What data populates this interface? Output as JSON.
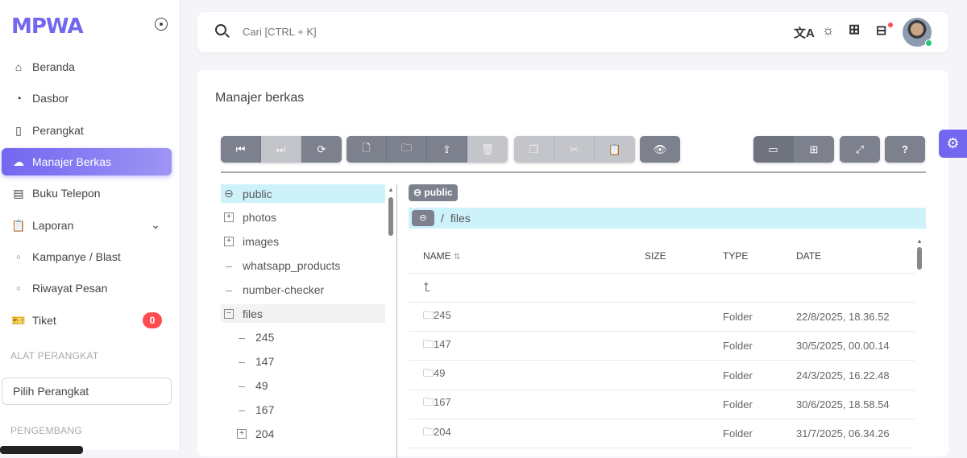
{
  "brand": {
    "logo": "MPWA"
  },
  "sidebar": {
    "items": [
      {
        "label": "Beranda",
        "icon": "home-icon",
        "glyph": "⌂"
      },
      {
        "label": "Dasbor",
        "icon": "gauge-icon",
        "glyph": "◔"
      },
      {
        "label": "Perangkat",
        "icon": "phone-icon",
        "glyph": "▯"
      },
      {
        "label": "Manajer Berkas",
        "icon": "cloud-upload-icon",
        "glyph": "☁"
      },
      {
        "label": "Buku Telepon",
        "icon": "book-icon",
        "glyph": "▤"
      },
      {
        "label": "Laporan",
        "icon": "clipboard-icon",
        "glyph": "📋"
      },
      {
        "label": "Kampanye / Blast",
        "icon": "circle-icon",
        "glyph": "○"
      },
      {
        "label": "Riwayat Pesan",
        "icon": "circle-icon",
        "glyph": "○"
      },
      {
        "label": "Tiket",
        "icon": "ticket-icon",
        "glyph": "🎫",
        "badge": "0"
      }
    ],
    "section_tools": "ALAT PERANGKAT",
    "device_select": "Pilih Perangkat",
    "section_dev": "PENGEMBANG"
  },
  "header": {
    "search_placeholder": "Cari [CTRL + K]"
  },
  "main": {
    "title": "Manajer berkas",
    "tree": [
      {
        "label": "public",
        "kind": "drive"
      },
      {
        "label": "photos",
        "kind": "plus"
      },
      {
        "label": "images",
        "kind": "plus"
      },
      {
        "label": "whatsapp_products",
        "kind": "dash"
      },
      {
        "label": "number-checker",
        "kind": "dash"
      },
      {
        "label": "files",
        "kind": "minus"
      },
      {
        "label": "245",
        "kind": "dash-child"
      },
      {
        "label": "147",
        "kind": "dash-child"
      },
      {
        "label": "49",
        "kind": "dash-child"
      },
      {
        "label": "167",
        "kind": "dash-child"
      },
      {
        "label": "204",
        "kind": "plus-child"
      }
    ],
    "storage_chip": "public",
    "breadcrumb": {
      "sep": "/",
      "current": "files"
    },
    "columns": [
      "NAME",
      "SIZE",
      "TYPE",
      "DATE"
    ],
    "rows": [
      {
        "name": "245",
        "size": "",
        "type": "Folder",
        "date": "22/8/2025, 18.36.52"
      },
      {
        "name": "147",
        "size": "",
        "type": "Folder",
        "date": "30/5/2025, 00.00.14"
      },
      {
        "name": "49",
        "size": "",
        "type": "Folder",
        "date": "24/3/2025, 16.22.48"
      },
      {
        "name": "167",
        "size": "",
        "type": "Folder",
        "date": "30/6/2025, 18.58.54"
      },
      {
        "name": "204",
        "size": "",
        "type": "Folder",
        "date": "31/7/2025, 06.34.26"
      }
    ]
  },
  "colors": {
    "accent": "#7367f0",
    "selected": "#cdf2fa",
    "button": "#7d818d",
    "badge": "#ff4c51",
    "online": "#28c76f"
  }
}
